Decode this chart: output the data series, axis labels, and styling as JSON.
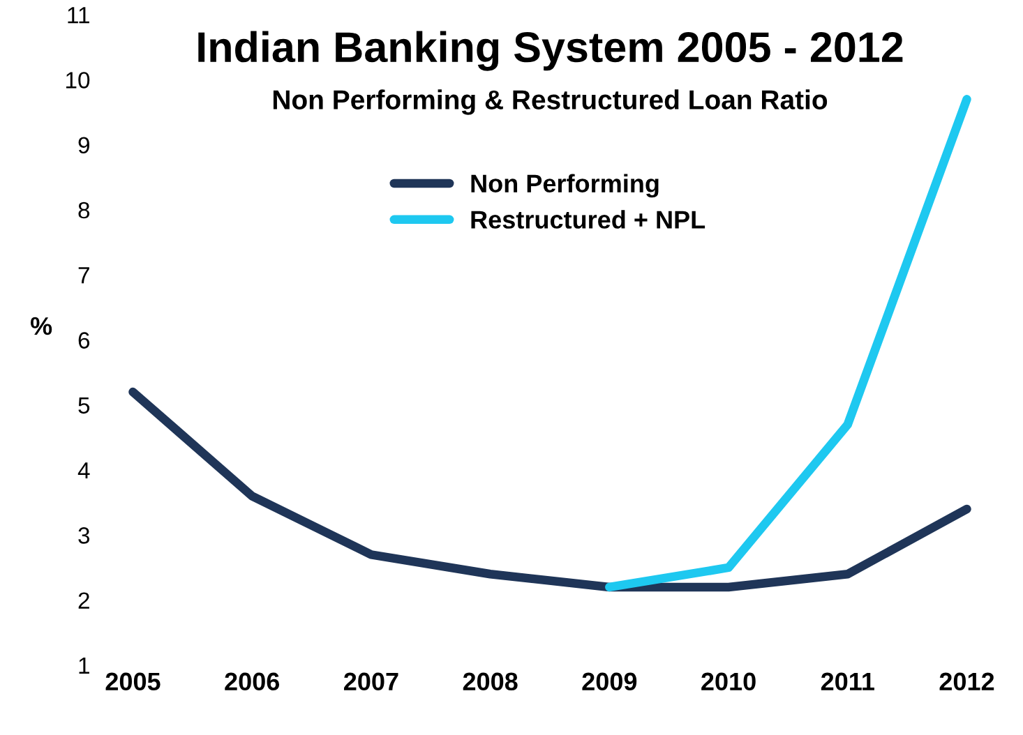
{
  "chart_data": {
    "type": "line",
    "title": "Indian Banking System 2005 - 2012",
    "subtitle": "Non Performing & Restructured Loan Ratio",
    "ylabel": "%",
    "categories": [
      "2005",
      "2006",
      "2007",
      "2008",
      "2009",
      "2010",
      "2011",
      "2012"
    ],
    "series": [
      {
        "name": "Non Performing",
        "color": "#1f3558",
        "values": [
          5.2,
          3.6,
          2.7,
          2.4,
          2.2,
          2.2,
          2.4,
          3.4
        ]
      },
      {
        "name": "Restructured + NPL",
        "color": "#1ec8f0",
        "values": [
          null,
          null,
          null,
          null,
          2.2,
          2.5,
          4.7,
          9.7
        ]
      }
    ],
    "ylim": [
      1,
      11
    ],
    "yticks": [
      1,
      2,
      3,
      4,
      5,
      6,
      7,
      8,
      9,
      10,
      11
    ],
    "grid": false,
    "legend": "top",
    "marker": "none",
    "line_style": "solid"
  }
}
